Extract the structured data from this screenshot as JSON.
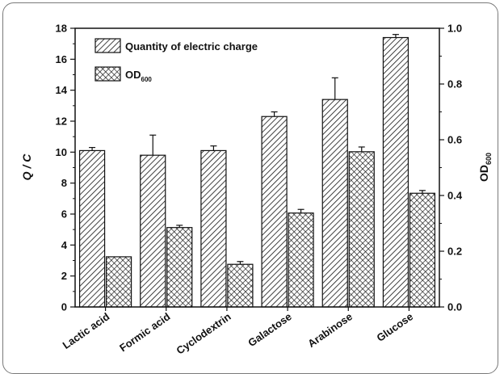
{
  "chart_data": {
    "type": "bar",
    "categories": [
      "Lactic acid",
      "Formic acid",
      "Cyclodextrin",
      "Galactose",
      "Arabinose",
      "Glucose"
    ],
    "series": [
      {
        "name": "Quantity of electric charge",
        "axis": "left",
        "pattern": "diagonal-hatch",
        "values": [
          10.1,
          9.8,
          10.1,
          12.3,
          13.4,
          17.4
        ],
        "errors": [
          0.2,
          1.3,
          0.3,
          0.3,
          1.4,
          0.2
        ]
      },
      {
        "name": "OD",
        "name_subscript": "600",
        "axis": "right",
        "pattern": "crosshatch",
        "values": [
          0.18,
          0.285,
          0.153,
          0.337,
          0.557,
          0.408
        ],
        "errors": [
          0.0,
          0.008,
          0.01,
          0.013,
          0.017,
          0.01
        ]
      }
    ],
    "ylabel_left": "Q / C",
    "ylabel_right": "OD",
    "ylabel_right_subscript": "600",
    "ylim_left": [
      0,
      18
    ],
    "ylim_right": [
      0,
      1.0
    ],
    "yticks_left": [
      "0",
      "2",
      "4",
      "6",
      "8",
      "10",
      "12",
      "14",
      "16",
      "18"
    ],
    "yticks_right": [
      "0.0",
      "0.2",
      "0.4",
      "0.6",
      "0.8",
      "1.0"
    ],
    "legend_position": "top-left",
    "grid": false
  },
  "colors": {
    "bar_fill": "#ffffff",
    "bar_stroke": "#111111",
    "axis": "#111111",
    "frame": "#7a7a7a"
  }
}
